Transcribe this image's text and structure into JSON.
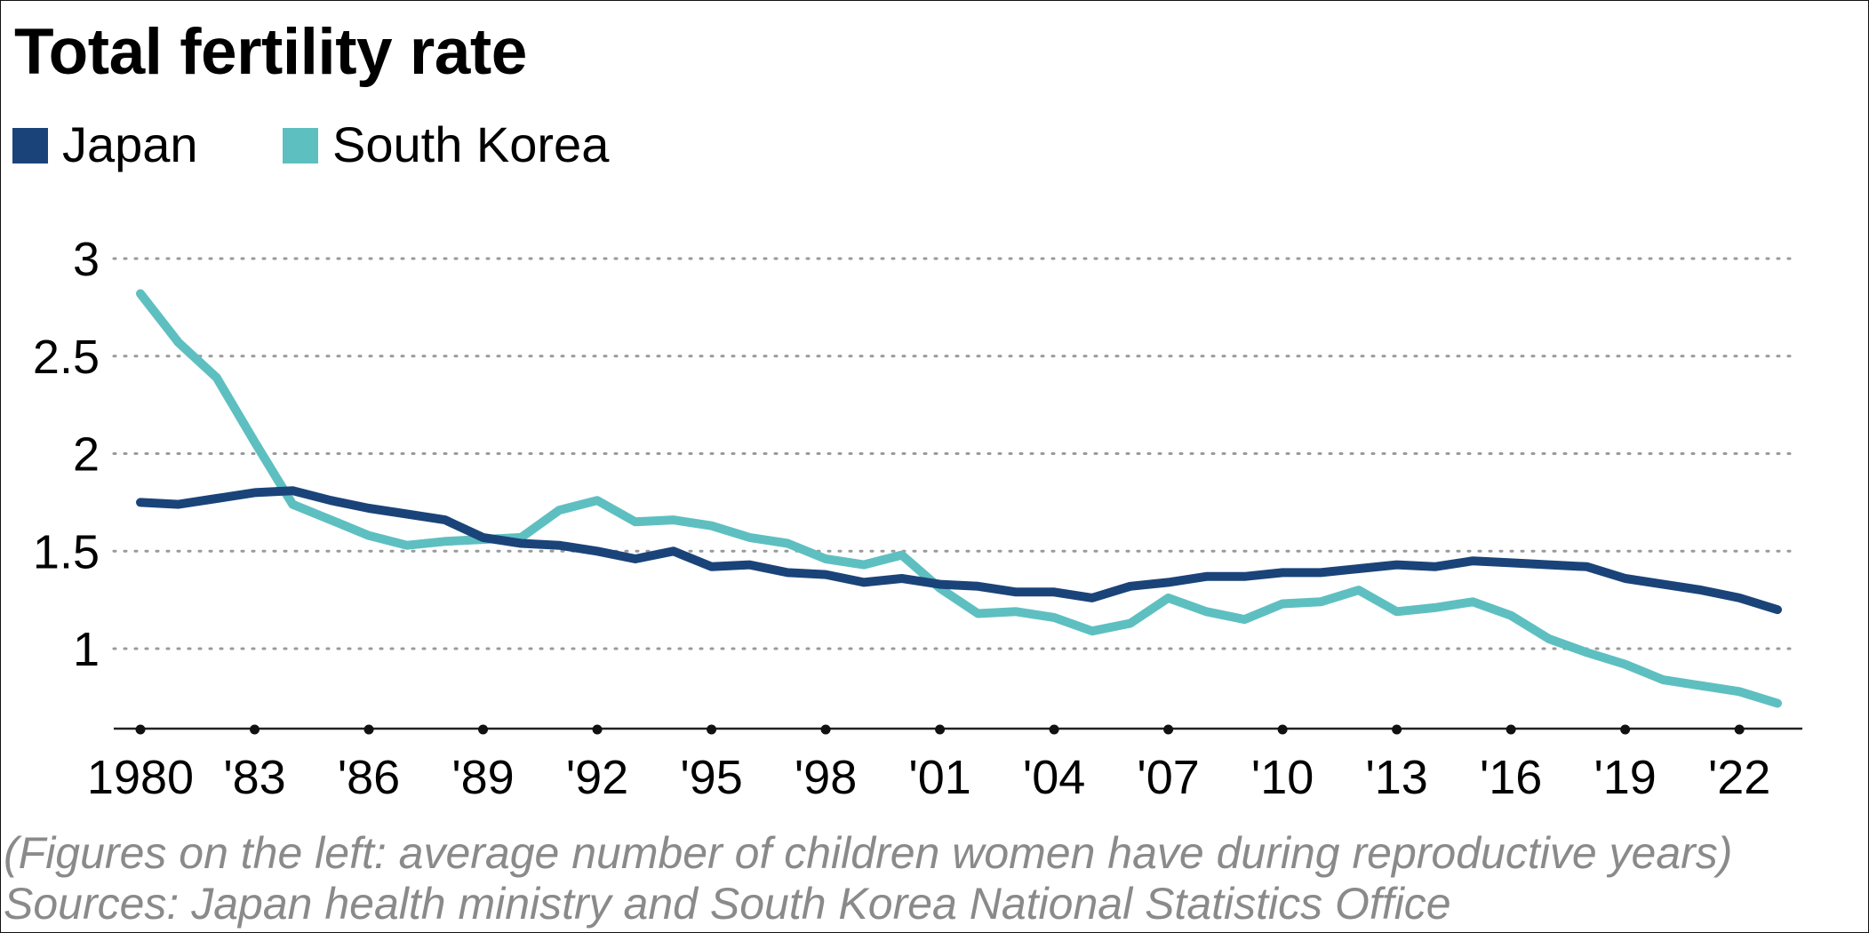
{
  "chart_data": {
    "type": "line",
    "title": "Total fertility rate",
    "xlabel": "",
    "ylabel": "",
    "x": [
      1980,
      1981,
      1982,
      1983,
      1984,
      1985,
      1986,
      1987,
      1988,
      1989,
      1990,
      1991,
      1992,
      1993,
      1994,
      1995,
      1996,
      1997,
      1998,
      1999,
      2000,
      2001,
      2002,
      2003,
      2004,
      2005,
      2006,
      2007,
      2008,
      2009,
      2010,
      2011,
      2012,
      2013,
      2014,
      2015,
      2016,
      2017,
      2018,
      2019,
      2020,
      2021,
      2022,
      2023
    ],
    "x_tick_values": [
      1980,
      1983,
      1986,
      1989,
      1992,
      1995,
      1998,
      2001,
      2004,
      2007,
      2010,
      2013,
      2016,
      2019,
      2022
    ],
    "x_tick_labels": [
      "1980",
      "'83",
      "'86",
      "'89",
      "'92",
      "'95",
      "'98",
      "'01",
      "'04",
      "'07",
      "'10",
      "'13",
      "'16",
      "'19",
      "'22"
    ],
    "xlim": [
      1980,
      2024.5
    ],
    "ylim": [
      0.57,
      3.0
    ],
    "y_ticks": [
      1,
      1.5,
      2,
      2.5,
      3
    ],
    "y_tick_labels": [
      "1",
      "1.5",
      "2",
      "2.5",
      "3"
    ],
    "grid": "horizontal dotted",
    "legend_position": "top-left",
    "series": [
      {
        "name": "Japan",
        "color": "#1a4479",
        "values": [
          1.75,
          1.74,
          1.77,
          1.8,
          1.81,
          1.76,
          1.72,
          1.69,
          1.66,
          1.57,
          1.54,
          1.53,
          1.5,
          1.46,
          1.5,
          1.42,
          1.43,
          1.39,
          1.38,
          1.34,
          1.36,
          1.33,
          1.32,
          1.29,
          1.29,
          1.26,
          1.32,
          1.34,
          1.37,
          1.37,
          1.39,
          1.39,
          1.41,
          1.43,
          1.42,
          1.45,
          1.44,
          1.43,
          1.42,
          1.36,
          1.33,
          1.3,
          1.26,
          1.2
        ]
      },
      {
        "name": "South Korea",
        "color": "#5ebfc1",
        "values": [
          2.82,
          2.57,
          2.39,
          2.06,
          1.74,
          1.66,
          1.58,
          1.53,
          1.55,
          1.56,
          1.57,
          1.71,
          1.76,
          1.65,
          1.66,
          1.63,
          1.57,
          1.54,
          1.46,
          1.43,
          1.48,
          1.31,
          1.18,
          1.19,
          1.16,
          1.09,
          1.13,
          1.26,
          1.19,
          1.15,
          1.23,
          1.24,
          1.3,
          1.19,
          1.21,
          1.24,
          1.17,
          1.05,
          0.98,
          0.92,
          0.84,
          0.81,
          0.78,
          0.72
        ]
      }
    ]
  },
  "footnotes": {
    "line1": "(Figures on the left: average number of children women have during reproductive years)",
    "line2": "Sources: Japan health ministry and South Korea National Statistics Office"
  }
}
